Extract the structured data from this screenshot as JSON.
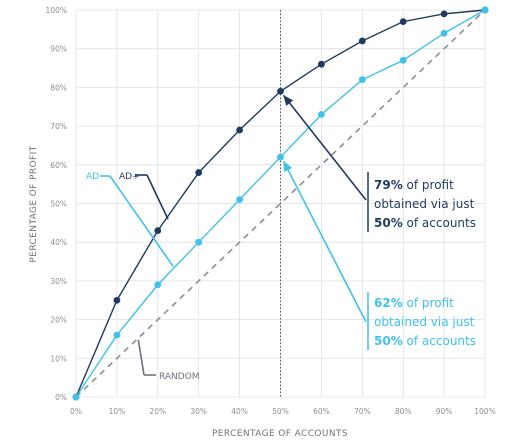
{
  "chart_data": {
    "type": "line",
    "xlabel": "PERCENTAGE OF ACCOUNTS",
    "ylabel": "PERCENTAGE OF PROFIT",
    "xlim": [
      0,
      100
    ],
    "ylim": [
      0,
      100
    ],
    "x_tick_labels": [
      "0%",
      "10%",
      "20%",
      "30%",
      "40%",
      "50%",
      "60%",
      "70%",
      "80%",
      "90%",
      "100%"
    ],
    "y_tick_labels": [
      "0%",
      "10%",
      "20%",
      "30%",
      "40%",
      "50%",
      "60%",
      "70%",
      "80%",
      "90%",
      "100%"
    ],
    "grid": true,
    "x": [
      0,
      10,
      20,
      30,
      40,
      50,
      60,
      70,
      80,
      90,
      100
    ],
    "series": [
      {
        "name": "AD+",
        "color": "#1f3a5f",
        "values": [
          0,
          25,
          43,
          58,
          69,
          79,
          86,
          92,
          97,
          99,
          100
        ]
      },
      {
        "name": "AD",
        "color": "#3fc1ec",
        "values": [
          0,
          16,
          29,
          40,
          51,
          62,
          73,
          82,
          87,
          94,
          100
        ]
      },
      {
        "name": "RANDOM",
        "color": "#8a8f96",
        "style": "dashed",
        "values": [
          0,
          10,
          20,
          30,
          40,
          50,
          60,
          70,
          80,
          90,
          100
        ]
      }
    ],
    "reference_line": {
      "x": 50,
      "style": "dotted"
    },
    "annotations": [
      {
        "series": "AD+",
        "line1_bold": "79%",
        "line1_rest": " of profit",
        "line2": "obtained via just",
        "line3_bold": "50%",
        "line3_rest": " of accounts",
        "color": "#1f3a5f"
      },
      {
        "series": "AD",
        "line1_bold": "62%",
        "line1_rest": " of profit",
        "line2": "obtained via just",
        "line3_bold": "50%",
        "line3_rest": " of accounts",
        "color": "#3fc1ec"
      }
    ]
  }
}
